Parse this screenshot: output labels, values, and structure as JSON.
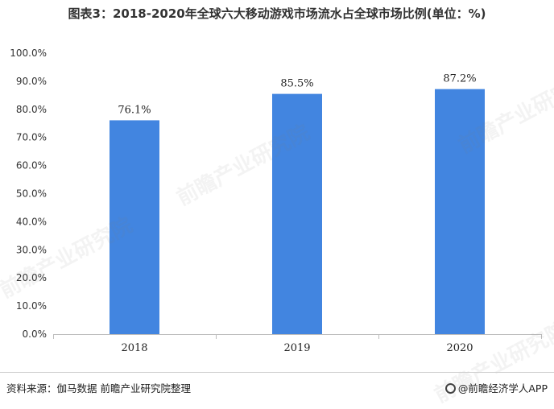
{
  "title": "图表3：2018-2020年全球六大移动游戏市场流水占全球市场比例(单位：%)",
  "chart_data": {
    "type": "bar",
    "categories": [
      "2018",
      "2019",
      "2020"
    ],
    "values": [
      76.1,
      85.5,
      87.2
    ],
    "data_labels": [
      "76.1%",
      "85.5%",
      "87.2%"
    ],
    "ylim": [
      0,
      100
    ],
    "yticks": [
      "0.0%",
      "10.0%",
      "20.0%",
      "30.0%",
      "40.0%",
      "50.0%",
      "60.0%",
      "70.0%",
      "80.0%",
      "90.0%",
      "100.0%"
    ],
    "xlabel": "",
    "ylabel": "",
    "grid": false,
    "bar_color": "#4285e0"
  },
  "footer": {
    "source": "资料来源：伽马数据 前瞻产业研究院整理",
    "brand": "@前瞻经济学人APP"
  },
  "watermark": "前瞻产业研究院"
}
